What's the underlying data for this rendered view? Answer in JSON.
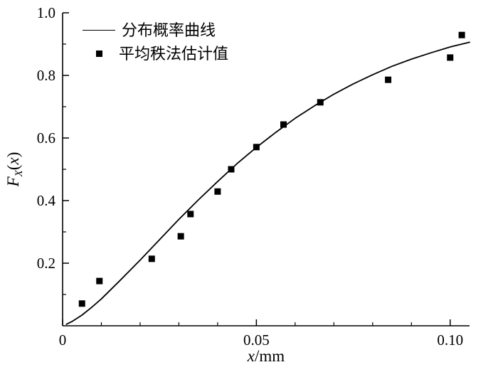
{
  "figure": {
    "background": "#ffffff",
    "axis_color": "#000000"
  },
  "labels": {
    "ylabel_f": "F",
    "ylabel_sub": "X",
    "ylabel_paren_open": "(",
    "ylabel_var": "x",
    "ylabel_paren_close": ")",
    "xlabel_var": "x",
    "xlabel_unit": "/mm"
  },
  "chart_data": {
    "type": "line",
    "title": "",
    "xlabel": "x/mm",
    "ylabel": "F_X(x)",
    "xlim": [
      0,
      0.105
    ],
    "ylim": [
      0,
      1.0
    ],
    "grid": false,
    "legend_position": "top-left",
    "axis_color": "#000000",
    "curve_color": "#000000",
    "marker_color": "#000000",
    "x_ticks": [
      {
        "v": 0,
        "label": "0"
      },
      {
        "v": 0.05,
        "label": "0.05"
      },
      {
        "v": 0.1,
        "label": "0.10"
      }
    ],
    "y_ticks": [
      {
        "v": 0.2,
        "label": "0.2"
      },
      {
        "v": 0.4,
        "label": "0.4"
      },
      {
        "v": 0.6,
        "label": "0.6"
      },
      {
        "v": 0.8,
        "label": "0.8"
      },
      {
        "v": 1.0,
        "label": "1.0"
      }
    ],
    "series": [
      {
        "name": "分布概率曲线",
        "type": "line",
        "x": [
          0.001,
          0.0025,
          0.005,
          0.0075,
          0.01,
          0.015,
          0.02,
          0.025,
          0.03,
          0.035,
          0.04,
          0.045,
          0.05,
          0.055,
          0.06,
          0.065,
          0.07,
          0.075,
          0.08,
          0.085,
          0.09,
          0.095,
          0.1,
          0.105
        ],
        "y": [
          0.005,
          0.014,
          0.034,
          0.059,
          0.086,
          0.147,
          0.21,
          0.275,
          0.34,
          0.402,
          0.461,
          0.518,
          0.57,
          0.618,
          0.663,
          0.703,
          0.74,
          0.773,
          0.802,
          0.829,
          0.852,
          0.872,
          0.891,
          0.906
        ]
      },
      {
        "name": "平均秩法估计值",
        "type": "scatter",
        "marker": "square",
        "x": [
          0.005,
          0.0095,
          0.023,
          0.0305,
          0.033,
          0.04,
          0.0435,
          0.05,
          0.057,
          0.0665,
          0.084,
          0.1,
          0.103
        ],
        "y": [
          0.071,
          0.143,
          0.214,
          0.286,
          0.357,
          0.429,
          0.5,
          0.571,
          0.643,
          0.714,
          0.786,
          0.857,
          0.929
        ]
      }
    ]
  }
}
